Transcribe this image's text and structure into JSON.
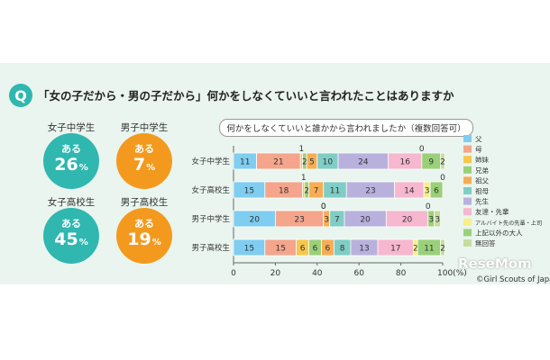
{
  "question": {
    "badge": "Q",
    "text": "「女の子だから・男の子だから」何かをしなくていいと言われたことはありますか"
  },
  "stats": [
    {
      "label": "女子中学生",
      "prefix": "ある",
      "value": "26",
      "unit": "%",
      "color": "#2fb7b0"
    },
    {
      "label": "男子中学生",
      "prefix": "ある",
      "value": "7",
      "unit": "%",
      "color": "#f39a1e"
    },
    {
      "label": "女子高校生",
      "prefix": "ある",
      "value": "45",
      "unit": "%",
      "color": "#2fb7b0"
    },
    {
      "label": "男子高校生",
      "prefix": "ある",
      "value": "19",
      "unit": "%",
      "color": "#f39a1e"
    }
  ],
  "watermark": "ReseMom",
  "credit": "©Girl Scouts of Japan",
  "chart_data": {
    "type": "bar",
    "stacked": true,
    "orientation": "horizontal",
    "title": "何かをしなくていいと誰かから言われましたか（複数回答可）",
    "categories": [
      "女子中学生",
      "女子高校生",
      "男子中学生",
      "男子高校生"
    ],
    "xlim": [
      0,
      100
    ],
    "xticks": [
      "0",
      "20",
      "40",
      "60",
      "80",
      "100(%)"
    ],
    "legend_position": "right",
    "series": [
      {
        "name": "父",
        "color": "#7fcdf0",
        "values": [
          11,
          15,
          20,
          15
        ]
      },
      {
        "name": "母",
        "color": "#f4a58c",
        "values": [
          21,
          18,
          23,
          15
        ]
      },
      {
        "name": "姉妹",
        "color": "#f6c74a",
        "values": [
          1,
          1,
          0,
          6
        ]
      },
      {
        "name": "兄弟",
        "color": "#9bd07a",
        "values": [
          2,
          2,
          0,
          6
        ]
      },
      {
        "name": "祖父",
        "color": "#f7ad55",
        "values": [
          5,
          7,
          3,
          6
        ]
      },
      {
        "name": "祖母",
        "color": "#7fcdc5",
        "values": [
          10,
          11,
          7,
          8
        ]
      },
      {
        "name": "先生",
        "color": "#b9b1dd",
        "values": [
          24,
          23,
          20,
          13
        ]
      },
      {
        "name": "友達・先輩",
        "color": "#f6b7cf",
        "values": [
          16,
          14,
          20,
          17
        ]
      },
      {
        "name": "アルバイト先の先輩・上司",
        "color": "#f6ef8a",
        "values": [
          0,
          3,
          0,
          2
        ]
      },
      {
        "name": "上記以外の大人",
        "color": "#9bd07a",
        "values": [
          9,
          6,
          3,
          11
        ]
      },
      {
        "name": "無回答",
        "color": "#c7dca0",
        "values": [
          2,
          0,
          3,
          2
        ]
      }
    ],
    "bar_labels": [
      [
        "11",
        "21",
        "1",
        "2",
        "5",
        "10",
        "24",
        "16",
        "0",
        "9",
        "2"
      ],
      [
        "15",
        "18",
        "1",
        "2",
        "7",
        "11",
        "23",
        "14",
        "3",
        "6",
        "0"
      ],
      [
        "20",
        "23",
        "0",
        "0",
        "3",
        "7",
        "20",
        "20",
        "0",
        "3",
        "3"
      ],
      [
        "15",
        "15",
        "6",
        "6",
        "6",
        "8",
        "13",
        "17",
        "2",
        "11",
        "2"
      ]
    ]
  }
}
